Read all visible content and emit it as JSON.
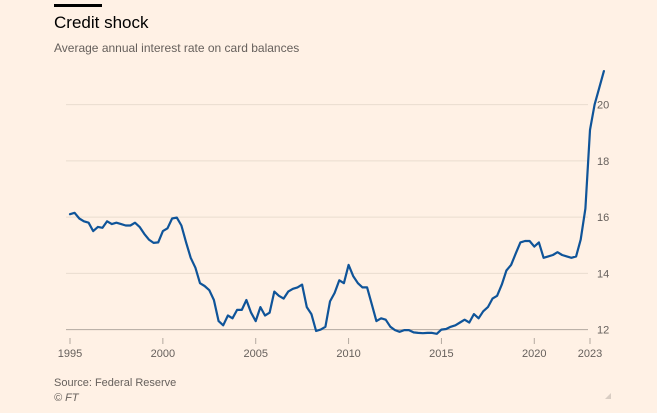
{
  "chart_data": {
    "type": "line",
    "title": "Credit shock",
    "subtitle": "Average annual interest rate on card balances",
    "xlabel": "",
    "ylabel": "",
    "xlim": [
      1995,
      2023
    ],
    "ylim": [
      11.7,
      21.3
    ],
    "y_ticks": [
      12,
      14,
      16,
      18,
      20
    ],
    "x_ticks": [
      1995,
      2000,
      2005,
      2010,
      2015,
      2020,
      2023
    ],
    "grid": true,
    "series": [
      {
        "name": "Average annual interest rate on card balances",
        "color": "#0f5499",
        "points": [
          [
            1995.0,
            16.1
          ],
          [
            1995.25,
            16.15
          ],
          [
            1995.5,
            15.95
          ],
          [
            1995.75,
            15.85
          ],
          [
            1996.0,
            15.8
          ],
          [
            1996.25,
            15.5
          ],
          [
            1996.5,
            15.65
          ],
          [
            1996.75,
            15.62
          ],
          [
            1997.0,
            15.85
          ],
          [
            1997.25,
            15.75
          ],
          [
            1997.5,
            15.8
          ],
          [
            1997.75,
            15.75
          ],
          [
            1998.0,
            15.7
          ],
          [
            1998.25,
            15.7
          ],
          [
            1998.5,
            15.8
          ],
          [
            1998.75,
            15.65
          ],
          [
            1999.0,
            15.4
          ],
          [
            1999.25,
            15.2
          ],
          [
            1999.5,
            15.08
          ],
          [
            1999.75,
            15.1
          ],
          [
            2000.0,
            15.5
          ],
          [
            2000.25,
            15.6
          ],
          [
            2000.5,
            15.95
          ],
          [
            2000.75,
            15.98
          ],
          [
            2001.0,
            15.7
          ],
          [
            2001.25,
            15.1
          ],
          [
            2001.5,
            14.55
          ],
          [
            2001.75,
            14.2
          ],
          [
            2002.0,
            13.65
          ],
          [
            2002.25,
            13.55
          ],
          [
            2002.5,
            13.4
          ],
          [
            2002.75,
            13.05
          ],
          [
            2003.0,
            12.3
          ],
          [
            2003.25,
            12.15
          ],
          [
            2003.5,
            12.5
          ],
          [
            2003.75,
            12.4
          ],
          [
            2004.0,
            12.7
          ],
          [
            2004.25,
            12.7
          ],
          [
            2004.5,
            13.05
          ],
          [
            2004.75,
            12.6
          ],
          [
            2005.0,
            12.3
          ],
          [
            2005.25,
            12.8
          ],
          [
            2005.5,
            12.5
          ],
          [
            2005.75,
            12.6
          ],
          [
            2006.0,
            13.35
          ],
          [
            2006.25,
            13.2
          ],
          [
            2006.5,
            13.1
          ],
          [
            2006.75,
            13.35
          ],
          [
            2007.0,
            13.45
          ],
          [
            2007.25,
            13.5
          ],
          [
            2007.5,
            13.6
          ],
          [
            2007.75,
            12.8
          ],
          [
            2008.0,
            12.55
          ],
          [
            2008.25,
            11.95
          ],
          [
            2008.5,
            12.0
          ],
          [
            2008.75,
            12.1
          ],
          [
            2009.0,
            13.0
          ],
          [
            2009.25,
            13.3
          ],
          [
            2009.5,
            13.75
          ],
          [
            2009.75,
            13.65
          ],
          [
            2010.0,
            14.3
          ],
          [
            2010.25,
            13.9
          ],
          [
            2010.5,
            13.65
          ],
          [
            2010.75,
            13.5
          ],
          [
            2011.0,
            13.5
          ],
          [
            2011.25,
            12.9
          ],
          [
            2011.5,
            12.3
          ],
          [
            2011.75,
            12.4
          ],
          [
            2012.0,
            12.35
          ],
          [
            2012.25,
            12.1
          ],
          [
            2012.5,
            11.98
          ],
          [
            2012.75,
            11.92
          ],
          [
            2013.0,
            11.98
          ],
          [
            2013.25,
            11.98
          ],
          [
            2013.5,
            11.9
          ],
          [
            2013.75,
            11.88
          ],
          [
            2014.0,
            11.87
          ],
          [
            2014.25,
            11.88
          ],
          [
            2014.5,
            11.88
          ],
          [
            2014.75,
            11.85
          ],
          [
            2015.0,
            12.0
          ],
          [
            2015.25,
            12.02
          ],
          [
            2015.5,
            12.1
          ],
          [
            2015.75,
            12.15
          ],
          [
            2016.0,
            12.25
          ],
          [
            2016.25,
            12.35
          ],
          [
            2016.5,
            12.25
          ],
          [
            2016.75,
            12.55
          ],
          [
            2017.0,
            12.4
          ],
          [
            2017.25,
            12.65
          ],
          [
            2017.5,
            12.8
          ],
          [
            2017.75,
            13.1
          ],
          [
            2018.0,
            13.2
          ],
          [
            2018.25,
            13.6
          ],
          [
            2018.5,
            14.1
          ],
          [
            2018.75,
            14.3
          ],
          [
            2019.0,
            14.7
          ],
          [
            2019.25,
            15.1
          ],
          [
            2019.5,
            15.15
          ],
          [
            2019.75,
            15.15
          ],
          [
            2020.0,
            14.95
          ],
          [
            2020.25,
            15.1
          ],
          [
            2020.5,
            14.55
          ],
          [
            2020.75,
            14.6
          ],
          [
            2021.0,
            14.65
          ],
          [
            2021.25,
            14.75
          ],
          [
            2021.5,
            14.65
          ],
          [
            2021.75,
            14.6
          ],
          [
            2022.0,
            14.55
          ],
          [
            2022.25,
            14.6
          ],
          [
            2022.5,
            15.2
          ],
          [
            2022.75,
            16.3
          ],
          [
            2023.0,
            19.1
          ],
          [
            2023.25,
            20.0
          ],
          [
            2023.5,
            20.6
          ],
          [
            2023.75,
            21.19
          ]
        ]
      }
    ],
    "source": "Source: Federal Reserve",
    "credit": "© FT"
  }
}
